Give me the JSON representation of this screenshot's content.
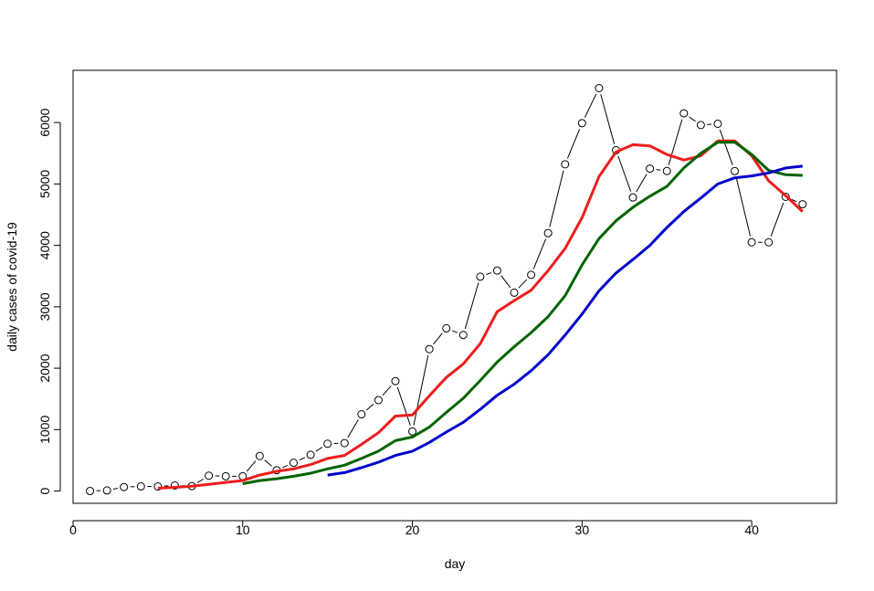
{
  "chart_data": {
    "type": "line",
    "title": "",
    "xlabel": "day",
    "ylabel": "daily cases of covid-19",
    "xlim": [
      0,
      45
    ],
    "ylim": [
      -200,
      6850
    ],
    "x_ticks": [
      0,
      10,
      20,
      30,
      40
    ],
    "y_ticks": [
      0,
      1000,
      2000,
      3000,
      4000,
      5000,
      6000
    ],
    "grid": false,
    "legend": "none",
    "series": [
      {
        "style": "points-lines",
        "color": "#000000",
        "x": [
          1,
          2,
          3,
          4,
          5,
          6,
          7,
          8,
          9,
          10,
          11,
          12,
          13,
          14,
          15,
          16,
          17,
          18,
          19,
          20,
          21,
          22,
          23,
          24,
          25,
          26,
          27,
          28,
          29,
          30,
          31,
          32,
          33,
          34,
          35,
          36,
          37,
          38,
          39,
          40,
          41,
          42,
          43
        ],
        "values": [
          0,
          10,
          65,
          75,
          75,
          90,
          80,
          250,
          240,
          240,
          570,
          340,
          460,
          590,
          770,
          780,
          1250,
          1480,
          1790,
          970,
          2310,
          2650,
          2540,
          3490,
          3590,
          3230,
          3520,
          4200,
          5320,
          5990,
          6560,
          5550,
          4780,
          5250,
          5210,
          6150,
          5960,
          5980,
          5210,
          4050,
          4050,
          4790,
          4670
        ]
      },
      {
        "style": "line",
        "color": "#ee1c1c",
        "x": [
          5,
          6,
          7,
          8,
          9,
          10,
          11,
          12,
          13,
          14,
          15,
          16,
          17,
          18,
          19,
          20,
          21,
          22,
          23,
          24,
          25,
          26,
          27,
          28,
          29,
          30,
          31,
          32,
          33,
          34,
          35,
          36,
          37,
          38,
          39,
          40,
          41,
          42,
          43
        ],
        "values": [
          45,
          60,
          80,
          110,
          140,
          170,
          260,
          320,
          360,
          430,
          530,
          580,
          760,
          950,
          1220,
          1240,
          1550,
          1850,
          2070,
          2400,
          2920,
          3100,
          3270,
          3590,
          3950,
          4450,
          5120,
          5520,
          5640,
          5620,
          5480,
          5390,
          5460,
          5700,
          5700,
          5460,
          5050,
          4810,
          4550
        ]
      },
      {
        "style": "line",
        "color": "#006400",
        "x": [
          10,
          11,
          12,
          13,
          14,
          15,
          16,
          17,
          18,
          19,
          20,
          21,
          22,
          23,
          24,
          25,
          26,
          27,
          28,
          29,
          30,
          31,
          32,
          33,
          34,
          35,
          36,
          37,
          38,
          39,
          40,
          41,
          42,
          43
        ],
        "values": [
          120,
          170,
          200,
          240,
          290,
          360,
          420,
          530,
          650,
          820,
          880,
          1040,
          1280,
          1510,
          1800,
          2100,
          2350,
          2580,
          2840,
          3180,
          3680,
          4110,
          4400,
          4620,
          4800,
          4960,
          5260,
          5500,
          5680,
          5680,
          5480,
          5220,
          5150,
          5140
        ]
      },
      {
        "style": "line",
        "color": "#0000cc",
        "x": [
          15,
          16,
          17,
          18,
          19,
          20,
          21,
          22,
          23,
          24,
          25,
          26,
          27,
          28,
          29,
          30,
          31,
          32,
          33,
          34,
          35,
          36,
          37,
          38,
          39,
          40,
          41,
          42,
          43
        ],
        "values": [
          260,
          300,
          380,
          470,
          580,
          650,
          790,
          960,
          1120,
          1330,
          1560,
          1740,
          1960,
          2220,
          2540,
          2880,
          3260,
          3550,
          3770,
          4000,
          4290,
          4550,
          4770,
          5000,
          5100,
          5130,
          5180,
          5260,
          5290
        ]
      }
    ]
  }
}
